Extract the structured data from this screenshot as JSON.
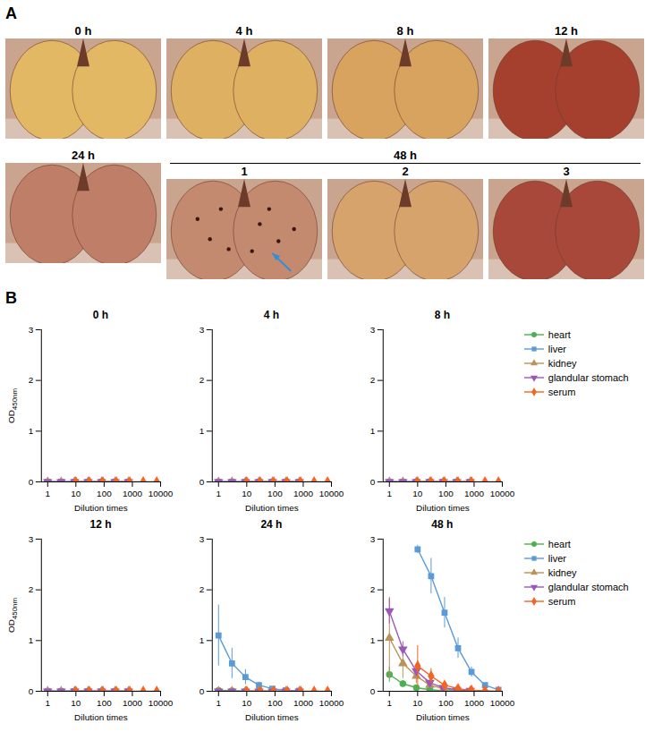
{
  "panel_a": {
    "letter": "A",
    "photos": [
      {
        "title": "0 h"
      },
      {
        "title": "4 h"
      },
      {
        "title": "8 h"
      },
      {
        "title": "12 h"
      },
      {
        "title": "24 h"
      }
    ],
    "group": {
      "title": "48 h",
      "photos": [
        {
          "title": "1"
        },
        {
          "title": "2"
        },
        {
          "title": "3"
        }
      ]
    }
  },
  "panel_b": {
    "letter": "B"
  },
  "chart_data": [
    {
      "type": "line",
      "title": "0 h",
      "x_label": "Dilution times",
      "y_label": "OD450nm",
      "log": "x",
      "xlim": [
        0.6,
        10000
      ],
      "xticks": [
        1,
        10,
        100,
        1000,
        10000
      ],
      "ylim": [
        0,
        3
      ],
      "yticks": [
        0,
        1,
        2,
        3
      ],
      "series": [
        {
          "name": "heart",
          "color": "#4caf50",
          "marker": "circle",
          "x": [
            1,
            3,
            9,
            27,
            81,
            243,
            729
          ],
          "values": [
            0,
            0,
            0,
            0,
            0,
            0,
            0
          ]
        },
        {
          "name": "liver",
          "color": "#5b9bd5",
          "marker": "square",
          "x": [
            1,
            3,
            9,
            27,
            81,
            243,
            729
          ],
          "values": [
            0,
            0,
            0,
            0,
            0,
            0,
            0
          ]
        },
        {
          "name": "kidney",
          "color": "#b8935a",
          "marker": "triangle",
          "x": [
            1,
            3,
            9,
            27,
            81,
            243,
            729
          ],
          "values": [
            0,
            0,
            0,
            0,
            0,
            0,
            0
          ]
        },
        {
          "name": "glandular stomach",
          "color": "#9b59b6",
          "marker": "triangle-down",
          "x": [
            1,
            3,
            9,
            27,
            81,
            243,
            729
          ],
          "values": [
            0,
            0,
            0,
            0,
            0,
            0,
            0
          ]
        },
        {
          "name": "serum",
          "color": "#f26522",
          "marker": "diamond",
          "x": [
            10,
            30,
            90,
            270,
            810,
            2430,
            7290
          ],
          "values": [
            0,
            0,
            0,
            0,
            0,
            0,
            0
          ]
        }
      ]
    },
    {
      "type": "line",
      "title": "4 h",
      "x_label": "Dilution times",
      "log": "x",
      "xlim": [
        0.6,
        10000
      ],
      "xticks": [
        1,
        10,
        100,
        1000,
        10000
      ],
      "ylim": [
        0,
        3
      ],
      "yticks": [
        0,
        1,
        2,
        3
      ],
      "series": [
        {
          "name": "heart",
          "color": "#4caf50",
          "marker": "circle",
          "x": [
            1,
            3,
            9,
            27,
            81,
            243,
            729
          ],
          "values": [
            0,
            0,
            0,
            0,
            0,
            0,
            0
          ]
        },
        {
          "name": "liver",
          "color": "#5b9bd5",
          "marker": "square",
          "x": [
            1,
            3,
            9,
            27,
            81,
            243,
            729
          ],
          "values": [
            0,
            0,
            0,
            0,
            0,
            0,
            0
          ]
        },
        {
          "name": "kidney",
          "color": "#b8935a",
          "marker": "triangle",
          "x": [
            1,
            3,
            9,
            27,
            81,
            243,
            729
          ],
          "values": [
            0,
            0,
            0,
            0,
            0,
            0,
            0
          ]
        },
        {
          "name": "glandular stomach",
          "color": "#9b59b6",
          "marker": "triangle-down",
          "x": [
            1,
            3,
            9,
            27,
            81,
            243,
            729
          ],
          "values": [
            0,
            0,
            0,
            0,
            0,
            0,
            0
          ]
        },
        {
          "name": "serum",
          "color": "#f26522",
          "marker": "diamond",
          "x": [
            10,
            30,
            90,
            270,
            810,
            2430,
            7290
          ],
          "values": [
            0,
            0,
            0,
            0,
            0,
            0,
            0
          ]
        }
      ]
    },
    {
      "type": "line",
      "title": "8 h",
      "x_label": "Dilution times",
      "log": "x",
      "legend": "right",
      "xlim": [
        0.6,
        10000
      ],
      "xticks": [
        1,
        10,
        100,
        1000,
        10000
      ],
      "ylim": [
        0,
        3
      ],
      "yticks": [
        0,
        1,
        2,
        3
      ],
      "series": [
        {
          "name": "heart",
          "color": "#4caf50",
          "marker": "circle",
          "x": [
            1,
            3,
            9,
            27,
            81,
            243,
            729
          ],
          "values": [
            0,
            0,
            0,
            0,
            0,
            0,
            0
          ]
        },
        {
          "name": "liver",
          "color": "#5b9bd5",
          "marker": "square",
          "x": [
            1,
            3,
            9,
            27,
            81,
            243,
            729
          ],
          "values": [
            0,
            0,
            0,
            0,
            0,
            0,
            0
          ]
        },
        {
          "name": "kidney",
          "color": "#b8935a",
          "marker": "triangle",
          "x": [
            1,
            3,
            9,
            27,
            81,
            243,
            729
          ],
          "values": [
            0,
            0,
            0,
            0,
            0,
            0,
            0
          ]
        },
        {
          "name": "glandular stomach",
          "color": "#9b59b6",
          "marker": "triangle-down",
          "x": [
            1,
            3,
            9,
            27,
            81,
            243,
            729
          ],
          "values": [
            0,
            0,
            0,
            0,
            0,
            0,
            0
          ]
        },
        {
          "name": "serum",
          "color": "#f26522",
          "marker": "diamond",
          "x": [
            10,
            30,
            90,
            270,
            810,
            2430,
            7290
          ],
          "values": [
            0,
            0,
            0,
            0,
            0,
            0,
            0
          ]
        }
      ]
    },
    {
      "type": "line",
      "title": "12 h",
      "x_label": "Dilution times",
      "y_label": "OD450nm",
      "log": "x",
      "xlim": [
        0.6,
        10000
      ],
      "xticks": [
        1,
        10,
        100,
        1000,
        10000
      ],
      "ylim": [
        0,
        3
      ],
      "yticks": [
        0,
        1,
        2,
        3
      ],
      "series": [
        {
          "name": "heart",
          "color": "#4caf50",
          "marker": "circle",
          "x": [
            1,
            3,
            9,
            27,
            81,
            243,
            729
          ],
          "values": [
            0,
            0,
            0,
            0,
            0,
            0,
            0
          ]
        },
        {
          "name": "liver",
          "color": "#5b9bd5",
          "marker": "square",
          "x": [
            1,
            3,
            9,
            27,
            81,
            243,
            729
          ],
          "values": [
            0,
            0,
            0,
            0,
            0,
            0,
            0
          ]
        },
        {
          "name": "kidney",
          "color": "#b8935a",
          "marker": "triangle",
          "x": [
            1,
            3,
            9,
            27,
            81,
            243,
            729
          ],
          "values": [
            0,
            0,
            0,
            0,
            0,
            0,
            0
          ]
        },
        {
          "name": "glandular stomach",
          "color": "#9b59b6",
          "marker": "triangle-down",
          "x": [
            1,
            3,
            9,
            27,
            81,
            243,
            729
          ],
          "values": [
            0,
            0,
            0,
            0,
            0,
            0,
            0
          ]
        },
        {
          "name": "serum",
          "color": "#f26522",
          "marker": "diamond",
          "x": [
            10,
            30,
            90,
            270,
            810,
            2430,
            7290
          ],
          "values": [
            0,
            0,
            0,
            0,
            0,
            0,
            0
          ]
        }
      ]
    },
    {
      "type": "line",
      "title": "24 h",
      "x_label": "Dilution times",
      "log": "x",
      "xlim": [
        0.6,
        10000
      ],
      "xticks": [
        1,
        10,
        100,
        1000,
        10000
      ],
      "ylim": [
        0,
        3
      ],
      "yticks": [
        0,
        1,
        2,
        3
      ],
      "series": [
        {
          "name": "heart",
          "color": "#4caf50",
          "marker": "circle",
          "x": [
            1,
            3,
            9,
            27,
            81,
            243,
            729
          ],
          "values": [
            0.02,
            0.01,
            0,
            0,
            0,
            0,
            0
          ]
        },
        {
          "name": "liver",
          "color": "#5b9bd5",
          "marker": "square",
          "x": [
            1,
            3,
            9,
            27,
            81,
            243,
            729
          ],
          "values": [
            1.1,
            0.55,
            0.28,
            0.12,
            0.05,
            0.02,
            0.01
          ],
          "errors": [
            0.6,
            0.3,
            0.15,
            0.06,
            0.02,
            0.01,
            0
          ]
        },
        {
          "name": "kidney",
          "color": "#b8935a",
          "marker": "triangle",
          "x": [
            1,
            3,
            9,
            27,
            81,
            243,
            729
          ],
          "values": [
            0,
            0,
            0,
            0,
            0,
            0,
            0
          ]
        },
        {
          "name": "glandular stomach",
          "color": "#9b59b6",
          "marker": "triangle-down",
          "x": [
            1,
            3,
            9,
            27,
            81,
            243,
            729
          ],
          "values": [
            0,
            0,
            0,
            0,
            0,
            0,
            0
          ]
        },
        {
          "name": "serum",
          "color": "#f26522",
          "marker": "diamond",
          "x": [
            10,
            30,
            90,
            270,
            810,
            2430,
            7290
          ],
          "values": [
            0,
            0,
            0,
            0,
            0,
            0,
            0
          ]
        }
      ]
    },
    {
      "type": "line",
      "title": "48 h",
      "x_label": "Dilution times",
      "log": "x",
      "legend": "right",
      "xlim": [
        0.6,
        10000
      ],
      "xticks": [
        1,
        10,
        100,
        1000,
        10000
      ],
      "ylim": [
        0,
        3
      ],
      "yticks": [
        0,
        1,
        2,
        3
      ],
      "series": [
        {
          "name": "heart",
          "color": "#4caf50",
          "marker": "circle",
          "x": [
            1,
            3,
            9,
            27,
            81,
            243,
            729
          ],
          "values": [
            0.33,
            0.15,
            0.07,
            0.03,
            0.01,
            0.01,
            0
          ],
          "errors": [
            0.15,
            0.06,
            0.03,
            0.01,
            0,
            0,
            0
          ]
        },
        {
          "name": "liver",
          "color": "#5b9bd5",
          "marker": "square",
          "x": [
            10,
            30,
            90,
            270,
            810,
            2430,
            7290
          ],
          "values": [
            2.8,
            2.27,
            1.55,
            0.85,
            0.38,
            0.12,
            0.03
          ],
          "errors": [
            0.08,
            0.35,
            0.3,
            0.2,
            0.1,
            0.04,
            0.01
          ]
        },
        {
          "name": "kidney",
          "color": "#b8935a",
          "marker": "triangle",
          "x": [
            1,
            3,
            9,
            27,
            81,
            243,
            729
          ],
          "values": [
            1.05,
            0.55,
            0.3,
            0.12,
            0.05,
            0.02,
            0.01
          ],
          "errors": [
            0.8,
            0.3,
            0.15,
            0.06,
            0.02,
            0.01,
            0
          ]
        },
        {
          "name": "glandular stomach",
          "color": "#9b59b6",
          "marker": "triangle-down",
          "x": [
            1,
            3,
            9,
            27,
            81,
            243,
            729
          ],
          "values": [
            1.58,
            0.83,
            0.4,
            0.17,
            0.07,
            0.03,
            0.01
          ],
          "errors": [
            0.25,
            0.15,
            0.1,
            0.05,
            0.02,
            0.01,
            0
          ]
        },
        {
          "name": "serum",
          "color": "#f26522",
          "marker": "diamond",
          "x": [
            10,
            30,
            90,
            270,
            810,
            2430,
            7290
          ],
          "values": [
            0.5,
            0.3,
            0.12,
            0.05,
            0.02,
            0.01,
            0
          ],
          "errors": [
            0.4,
            0.15,
            0.06,
            0.02,
            0.01,
            0,
            0
          ]
        }
      ]
    }
  ]
}
